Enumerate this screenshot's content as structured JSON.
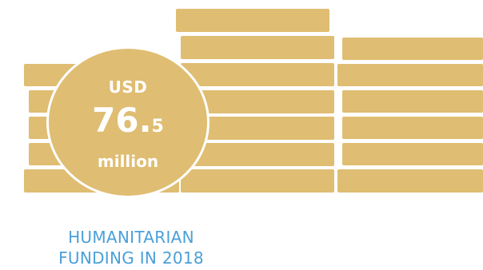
{
  "colors": {
    "coin_fill": "#dfbd72",
    "caption": "#4aa0d8"
  },
  "badge": {
    "currency": "USD",
    "amount_integer": "76.",
    "amount_decimal": "5",
    "unit": "million"
  },
  "caption": {
    "line1": "HUMANITARIAN",
    "line2": "FUNDING IN 2018"
  }
}
